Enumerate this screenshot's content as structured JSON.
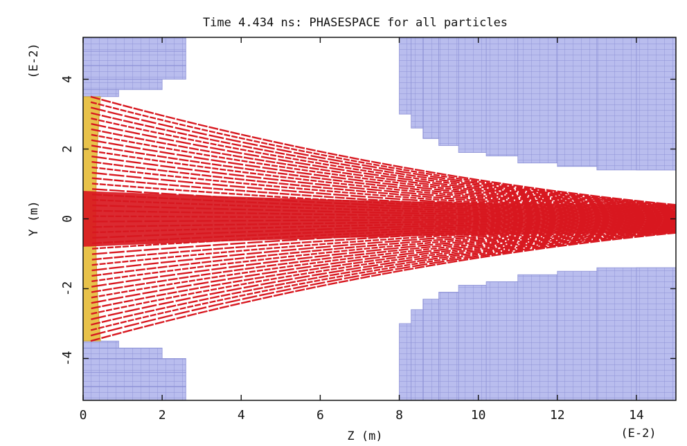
{
  "chart_data": {
    "type": "scatter",
    "title": "Time 4.434 ns:  PHASESPACE for all particles",
    "xlabel": "Z (m)",
    "ylabel": "Y (m)",
    "x_scale_label": "(E-2)",
    "y_scale_label": "(E-2)",
    "xlim": [
      0,
      15
    ],
    "ylim": [
      -5.2,
      5.2
    ],
    "x_ticks": [
      "0",
      "2",
      "4",
      "6",
      "8",
      "10",
      "12",
      "14"
    ],
    "y_ticks": [
      "-4",
      "-2",
      "0",
      "2",
      "4"
    ],
    "grid": false,
    "legend": "none",
    "series": [
      {
        "role": "particle-trajectories",
        "color": "#d81820",
        "emitter_z": 0.8,
        "emitter_half_height": 3.5,
        "core_half_height_at_start": 0.8,
        "core_half_height_at_end": 0.4,
        "z_end": 15
      },
      {
        "role": "cathode-emitter",
        "color": "#e8c24a",
        "z_range": [
          0,
          0.8
        ],
        "y_range": [
          -3.5,
          3.5
        ]
      },
      {
        "role": "electrode-mesh",
        "color": "#b9bdee",
        "upper_left": {
          "z": [
            [
              0,
              2.6
            ],
            [
              0,
              2.6
            ],
            [
              0,
              2.6
            ],
            [
              0,
              2.0
            ],
            [
              0,
              0.9
            ]
          ],
          "y": [
            [
              5.2,
              4.8
            ],
            [
              4.8,
              4.4
            ],
            [
              4.4,
              4.0
            ],
            [
              4.0,
              3.7
            ],
            [
              3.7,
              3.5
            ]
          ]
        },
        "upper_right": {
          "z_start": [
            8.0,
            8.3,
            8.6,
            9.0,
            9.5,
            10.2,
            11.0,
            12.0,
            13.0,
            14.0
          ],
          "y_bottom": [
            3.0,
            2.6,
            2.3,
            2.1,
            1.9,
            1.8,
            1.6,
            1.5,
            1.4,
            1.4
          ]
        },
        "lower_left": {
          "mirror_of": "upper_left"
        },
        "lower_right": {
          "mirror_of": "upper_right"
        }
      }
    ]
  },
  "colors": {
    "trajectory": "#d81820",
    "emitter": "#e8c24a",
    "mesh_fill": "#b9bdee",
    "mesh_line": "#8d91d6",
    "axes": "#111111",
    "background": "#ffffff"
  }
}
